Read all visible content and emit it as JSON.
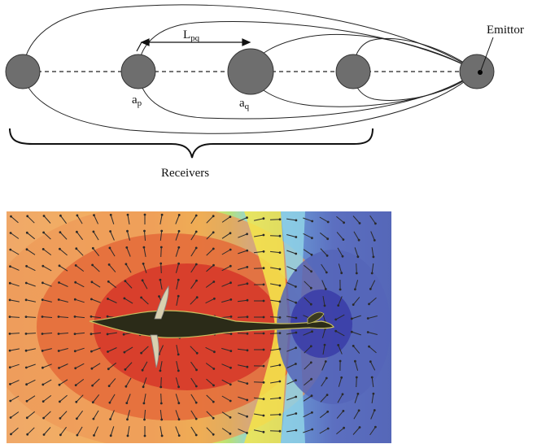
{
  "diagram": {
    "labels": {
      "distance": "L",
      "distance_sub": "pq",
      "node_p": "a",
      "node_p_sub": "p",
      "node_q": "a",
      "node_q_sub": "q",
      "emitter": "Emittor",
      "receivers": "Receivers"
    },
    "colors": {
      "node_fill": "#6e6e6e",
      "line": "#222222"
    }
  },
  "field_map": {
    "colors": {
      "far_left": "#f0a868",
      "positive_core": "#dd3b2c",
      "mid": "#f4e64a",
      "transition": "#8fd2e6",
      "negative": "#5c6fc0",
      "negative_core": "#3b3ea8",
      "fish_body": "#2b2b18"
    }
  }
}
